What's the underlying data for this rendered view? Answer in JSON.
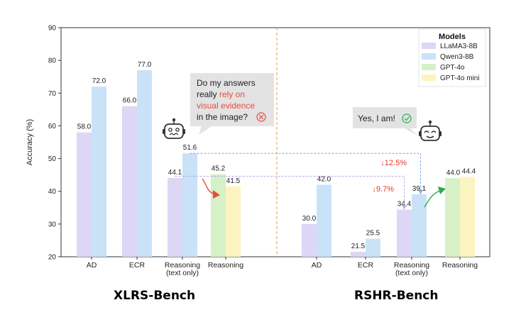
{
  "chart_data": {
    "type": "bar",
    "ylabel": "Accuracy (%)",
    "ylim": [
      20,
      90
    ],
    "yticks": [
      20,
      30,
      40,
      50,
      60,
      70,
      80,
      90
    ],
    "legend": {
      "title": "Models",
      "placement": "top-right",
      "entries": [
        {
          "name": "LLaMA3-8B",
          "color": "#ddd6f5"
        },
        {
          "name": "Qwen3-8B",
          "color": "#c9e2f8"
        },
        {
          "name": "GPT-4o",
          "color": "#d6f0c8"
        },
        {
          "name": "GPT-4o mini",
          "color": "#fbf4c0"
        }
      ]
    },
    "panels": [
      {
        "name": "XLRS-Bench",
        "categories": [
          {
            "label": [
              "AD"
            ],
            "bars": [
              {
                "series": "LLaMA3-8B",
                "value": 58.0
              },
              {
                "series": "Qwen3-8B",
                "value": 72.0
              }
            ]
          },
          {
            "label": [
              "ECR"
            ],
            "bars": [
              {
                "series": "LLaMA3-8B",
                "value": 66.0
              },
              {
                "series": "Qwen3-8B",
                "value": 77.0
              }
            ]
          },
          {
            "label": [
              "Reasoning",
              "(text only)"
            ],
            "bars": [
              {
                "series": "LLaMA3-8B",
                "value": 44.1
              },
              {
                "series": "Qwen3-8B",
                "value": 51.6
              }
            ]
          },
          {
            "label": [
              "Reasoning"
            ],
            "bars": [
              {
                "series": "GPT-4o",
                "value": 45.2
              },
              {
                "series": "GPT-4o mini",
                "value": 41.5
              }
            ]
          }
        ]
      },
      {
        "name": "RSHR-Bench",
        "categories": [
          {
            "label": [
              "AD"
            ],
            "bars": [
              {
                "series": "LLaMA3-8B",
                "value": 30.0
              },
              {
                "series": "Qwen3-8B",
                "value": 42.0
              }
            ]
          },
          {
            "label": [
              "ECR"
            ],
            "bars": [
              {
                "series": "LLaMA3-8B",
                "value": 21.5
              },
              {
                "series": "Qwen3-8B",
                "value": 25.5
              }
            ]
          },
          {
            "label": [
              "Reasoning",
              "(text only)"
            ],
            "bars": [
              {
                "series": "LLaMA3-8B",
                "value": 34.4
              },
              {
                "series": "Qwen3-8B",
                "value": 39.1
              }
            ]
          },
          {
            "label": [
              "Reasoning"
            ],
            "bars": [
              {
                "series": "GPT-4o",
                "value": 44.0
              },
              {
                "series": "GPT-4o mini",
                "value": 44.4
              }
            ]
          }
        ]
      }
    ],
    "annotations": {
      "speech_left": [
        "Do my answers",
        "really ",
        "rely on",
        "visual evidence",
        "in the image?"
      ],
      "speech_right": "Yes, I am!",
      "drop_1": "↓12.5%",
      "drop_2": "↓9.7%"
    }
  }
}
